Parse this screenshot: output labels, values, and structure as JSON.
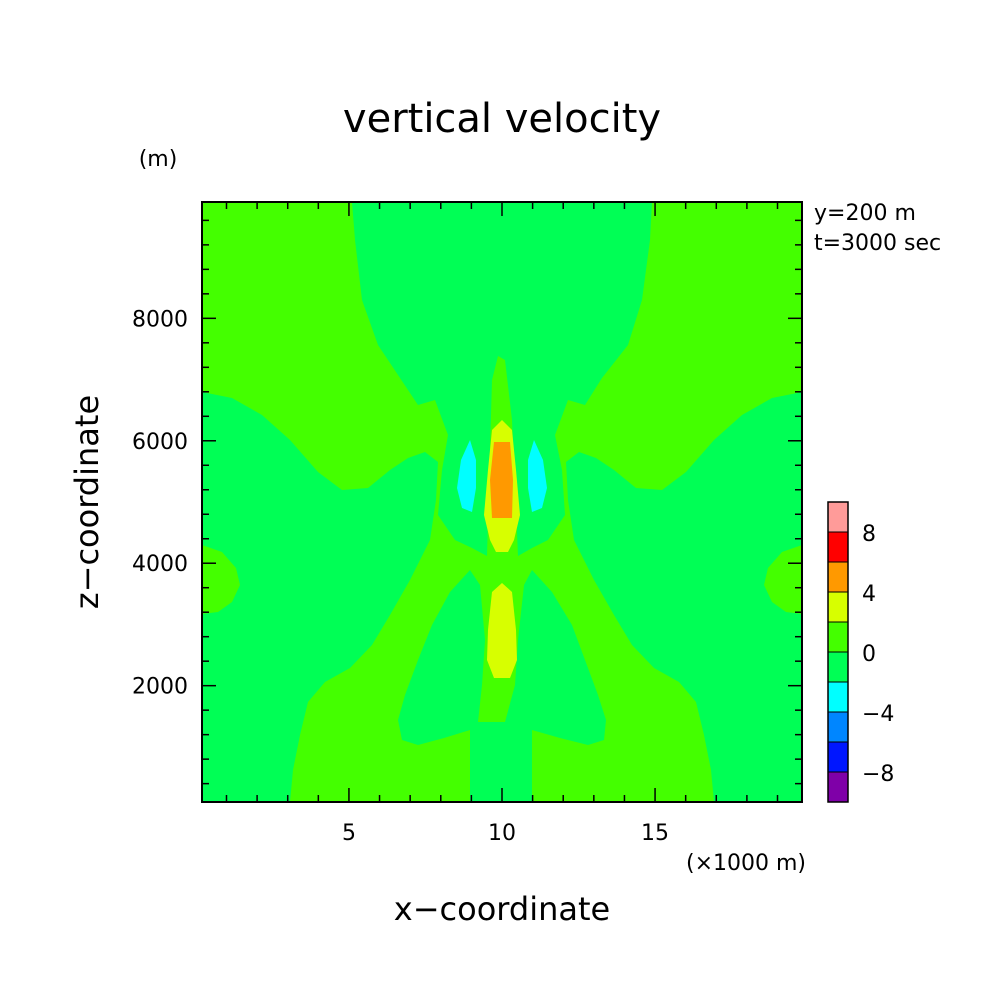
{
  "chart_data": {
    "type": "heatmap",
    "title": "vertical velocity",
    "xlabel": "x−coordinate",
    "ylabel": "z−coordinate",
    "x_unit": "(×1000 m)",
    "y_unit": "(m)",
    "annotations": [
      "y=200 m",
      "t=3000 sec"
    ],
    "xlim": [
      0.2,
      19.8
    ],
    "ylim": [
      100,
      9900
    ],
    "x_ticks": [
      5,
      10,
      15
    ],
    "y_ticks": [
      2000,
      4000,
      6000,
      8000
    ],
    "x_tick_labels": [
      "5",
      "10",
      "15"
    ],
    "y_tick_labels": [
      "2000",
      "4000",
      "6000",
      "8000"
    ],
    "colorbar": {
      "levels": [
        -10,
        -8,
        -6,
        -4,
        -2,
        0,
        2,
        4,
        6,
        8,
        10
      ],
      "tick_values": [
        -8,
        -4,
        0,
        4,
        8
      ],
      "tick_labels": [
        "−8",
        "−4",
        "0",
        "4",
        "8"
      ],
      "colors": [
        "#7f00a8",
        "#0016ff",
        "#0086ff",
        "#00ffff",
        "#00ff55",
        "#44ff00",
        "#d7ff00",
        "#ff9900",
        "#ff0000",
        "#ff9b99"
      ]
    },
    "background_band": "0 to 2",
    "regions": [
      {
        "name": "central-updraft",
        "band": "2 to 4",
        "x_center": 10.0,
        "z_range": [
          4800,
          6300
        ]
      },
      {
        "name": "core-max",
        "band": "4 to 6",
        "x_center": 10.0,
        "z_range": [
          5000,
          5950
        ]
      },
      {
        "name": "lower-updraft",
        "band": "2 to 4",
        "x_center": 10.0,
        "z_range": [
          2100,
          3600
        ]
      },
      {
        "name": "left-downdraft",
        "band": "-4 to -2",
        "x_center": 8.9,
        "z_range": [
          4900,
          5950
        ]
      },
      {
        "name": "right-downdraft",
        "band": "-4 to -2",
        "x_center": 11.1,
        "z_range": [
          4900,
          5950
        ]
      }
    ]
  }
}
